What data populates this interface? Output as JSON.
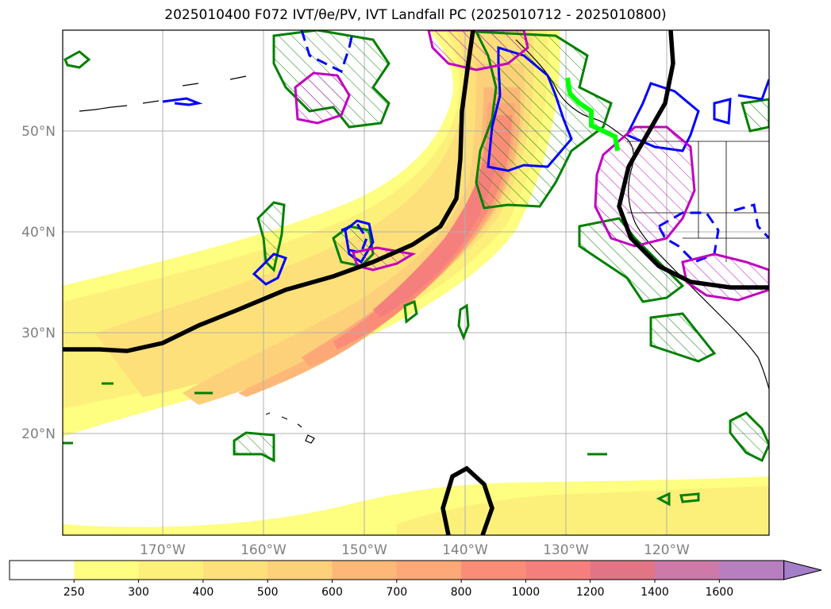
{
  "title": "2025010400 F072 IVT/θe/PV, IVT Landfall PC (2025010712 - 2025010800)",
  "lat_labels": [
    "50°N",
    "40°N",
    "30°N",
    "20°N"
  ],
  "lon_labels": [
    "170°W",
    "160°W",
    "150°W",
    "140°W",
    "130°W",
    "120°W"
  ],
  "colorbar": {
    "ticks": [
      "250",
      "300",
      "400",
      "500",
      "600",
      "700",
      "800",
      "1000",
      "1200",
      "1400",
      "1600"
    ],
    "colors": [
      "#ffffff",
      "#fefe80",
      "#fdf07a",
      "#fde07a",
      "#fdd07a",
      "#fdb877",
      "#fca877",
      "#fb8c78",
      "#f57f7c",
      "#e17485",
      "#cd7aa8",
      "#b77ec0",
      "#a47ec8"
    ]
  },
  "colors": {
    "ivt_contour": "#000000",
    "pv_hatch": "#008000",
    "theta_e_positive": "#0000ff",
    "pc_magenta": "#c000c0",
    "landfall": "#00ff00"
  }
}
